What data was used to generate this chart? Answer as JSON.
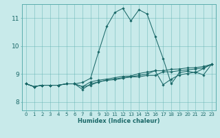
{
  "xlabel": "Humidex (Indice chaleur)",
  "bg_color": "#c8eaea",
  "grid_color": "#5aadad",
  "line_color": "#1a6868",
  "xlim": [
    -0.5,
    23.5
  ],
  "ylim": [
    7.7,
    11.5
  ],
  "xticks": [
    0,
    1,
    2,
    3,
    4,
    5,
    6,
    7,
    8,
    9,
    10,
    11,
    12,
    13,
    14,
    15,
    16,
    17,
    18,
    19,
    20,
    21,
    22,
    23
  ],
  "yticks": [
    8,
    9,
    10,
    11
  ],
  "series": [
    [
      8.65,
      8.55,
      8.6,
      8.6,
      8.6,
      8.65,
      8.65,
      8.7,
      8.85,
      9.8,
      10.7,
      11.2,
      11.35,
      10.9,
      11.3,
      11.15,
      10.35,
      9.55,
      8.65,
      9.05,
      9.1,
      9.05,
      9.2,
      9.35
    ],
    [
      8.65,
      8.55,
      8.6,
      8.6,
      8.6,
      8.65,
      8.65,
      8.55,
      8.6,
      8.72,
      8.78,
      8.8,
      8.85,
      8.9,
      8.9,
      8.95,
      8.95,
      9.08,
      9.08,
      9.12,
      9.15,
      9.18,
      9.22,
      9.35
    ],
    [
      8.65,
      8.55,
      8.6,
      8.6,
      8.6,
      8.65,
      8.65,
      8.55,
      8.72,
      8.78,
      8.82,
      8.87,
      8.92,
      8.93,
      9.02,
      9.07,
      9.12,
      9.12,
      9.17,
      9.18,
      9.22,
      9.23,
      9.27,
      9.35
    ],
    [
      8.65,
      8.55,
      8.6,
      8.6,
      8.6,
      8.65,
      8.65,
      8.45,
      8.65,
      8.72,
      8.78,
      8.82,
      8.87,
      8.9,
      8.95,
      9.0,
      9.12,
      8.62,
      8.82,
      8.97,
      9.02,
      9.07,
      8.97,
      9.35
    ]
  ]
}
